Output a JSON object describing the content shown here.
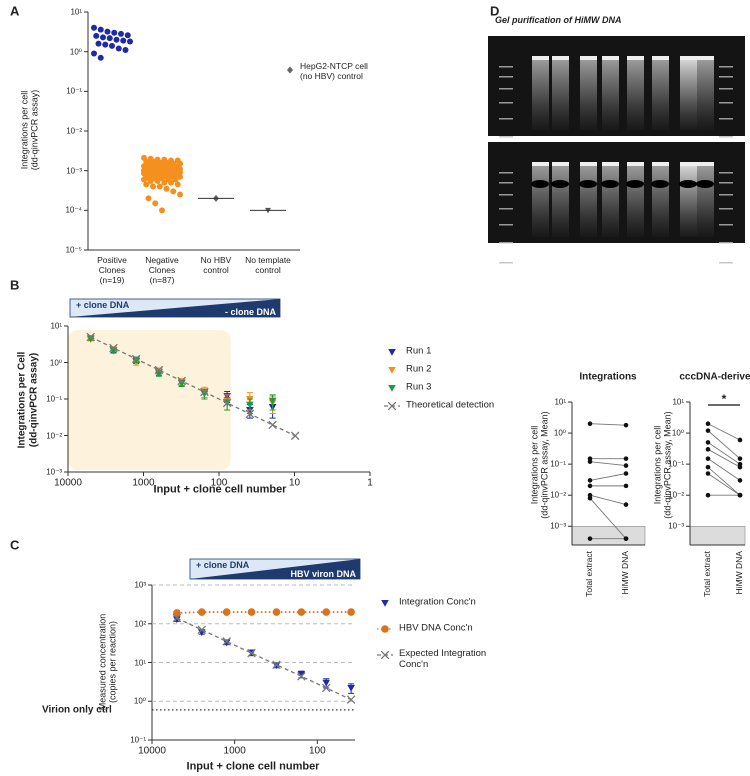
{
  "panel_labels": [
    "A",
    "B",
    "C",
    "D"
  ],
  "image": {
    "title": "Gel purification of HiMW DNA"
  },
  "chart_data": [
    {
      "type": "scatter",
      "y_label": "Integrations per cell\n(dd-qinvPCR assay)",
      "log_y": true,
      "ylim": [
        1e-05,
        10
      ],
      "yticks": [
        {
          "value": 10,
          "label": "10¹"
        },
        {
          "value": 1,
          "label": "10⁰"
        },
        {
          "value": 0.1,
          "label": "10⁻¹"
        },
        {
          "value": 0.01,
          "label": "10⁻²"
        },
        {
          "value": 0.001,
          "label": "10⁻³"
        },
        {
          "value": 0.0001,
          "label": "10⁻⁴"
        },
        {
          "value": 1e-05,
          "label": "10⁻⁵"
        }
      ],
      "groups": [
        {
          "label": "Positive\nClones\n(n=19)",
          "color": "#1f2aa8",
          "marker": "circle",
          "median_line": false,
          "values": [
            4.0,
            3.6,
            3.2,
            3.0,
            2.8,
            2.6,
            2.5,
            2.3,
            2.2,
            2.0,
            1.9,
            1.8,
            1.6,
            1.5,
            1.4,
            1.2,
            1.1,
            0.9,
            0.7
          ]
        },
        {
          "label": "Negative\nClones\n(n=87)",
          "color": "#f5901e",
          "marker": "circle",
          "median_line": false,
          "values": [
            0.0021,
            0.002,
            0.0019,
            0.0019,
            0.0018,
            0.0018,
            0.0017,
            0.0017,
            0.0016,
            0.0016,
            0.0015,
            0.0015,
            0.0015,
            0.0014,
            0.0014,
            0.0014,
            0.0013,
            0.0013,
            0.0013,
            0.0013,
            0.0012,
            0.0012,
            0.0012,
            0.0012,
            0.0012,
            0.0011,
            0.0011,
            0.0011,
            0.0011,
            0.0011,
            0.0011,
            0.001,
            0.001,
            0.001,
            0.001,
            0.001,
            0.001,
            0.001,
            0.001,
            0.001,
            0.00095,
            0.00095,
            0.00095,
            0.00095,
            0.0009,
            0.0009,
            0.0009,
            0.0009,
            0.0009,
            0.00085,
            0.00085,
            0.00085,
            0.00085,
            0.0008,
            0.0008,
            0.0008,
            0.0008,
            0.00075,
            0.00075,
            0.00075,
            0.0007,
            0.0007,
            0.0007,
            0.00065,
            0.00065,
            0.00065,
            0.0006,
            0.0006,
            0.0006,
            0.00055,
            0.00055,
            0.0005,
            0.0005,
            0.00045,
            0.00045,
            0.0004,
            0.0004,
            0.00035,
            0.0003,
            0.00025,
            0.0002,
            0.00015,
            0.0001,
            0.0012,
            0.0011,
            0.001,
            0.0009
          ]
        },
        {
          "label": "No HBV\ncontrol",
          "color": "#666666",
          "marker": "diamond",
          "median_line": true,
          "values": [
            0.0002
          ]
        },
        {
          "label": "No template\ncontrol",
          "color": "#555555",
          "marker": "triangle-down",
          "median_line": true,
          "values": [
            0.0001
          ]
        }
      ],
      "annotation": {
        "text": "HepG2-NTCP cell\n(no HBV) control",
        "marker": "diamond",
        "color": "#666666"
      }
    },
    {
      "type": "line",
      "y_label": "Integrations per Cell\n(dd-qinvPCR assay)",
      "x_label": "Input + clone cell number",
      "log_x": true,
      "log_y": true,
      "xlim": [
        10000,
        1
      ],
      "ylim": [
        0.001,
        10
      ],
      "xticks": [
        10000,
        1000,
        100,
        10,
        1
      ],
      "yticks": [
        {
          "value": 10,
          "label": "10¹"
        },
        {
          "value": 1,
          "label": "10⁰"
        },
        {
          "value": 0.1,
          "label": "10⁻¹"
        },
        {
          "value": 0.01,
          "label": "10⁻²"
        },
        {
          "value": 0.001,
          "label": "10⁻³"
        }
      ],
      "banner": [
        "+ clone DNA",
        "- clone DNA"
      ],
      "highlight_xlim": [
        10000,
        70
      ],
      "x": [
        5000,
        2500,
        1250,
        625,
        312,
        156,
        78,
        39,
        19.5
      ],
      "series": [
        {
          "name": "Run 1",
          "color": "#1f2aa8",
          "marker": "triangle-down",
          "line": "none",
          "values": [
            4.5,
            2.2,
            1.1,
            0.55,
            0.28,
            0.15,
            0.12,
            0.05,
            0.06
          ],
          "errors": [
            0.5,
            0.3,
            0.15,
            0.1,
            0.05,
            0.04,
            0.04,
            0.02,
            0.03
          ]
        },
        {
          "name": "Run 2",
          "color": "#f5901e",
          "marker": "triangle-down",
          "line": "none",
          "values": [
            4.3,
            2.3,
            1.0,
            0.6,
            0.3,
            0.16,
            0.09,
            0.1,
            0.08
          ],
          "errors": [
            0.4,
            0.3,
            0.15,
            0.1,
            0.06,
            0.05,
            0.04,
            0.05,
            0.04
          ]
        },
        {
          "name": "Run 3",
          "color": "#1e9b3a",
          "marker": "triangle-down",
          "line": "none",
          "values": [
            4.6,
            2.1,
            1.2,
            0.5,
            0.27,
            0.14,
            0.08,
            0.07,
            0.09
          ],
          "errors": [
            0.5,
            0.3,
            0.2,
            0.08,
            0.05,
            0.04,
            0.03,
            0.03,
            0.04
          ]
        },
        {
          "name": "Theoretical detection",
          "color": "#777777",
          "marker": "x",
          "line": "dashed",
          "x": [
            5000,
            2500,
            1250,
            625,
            312,
            156,
            78,
            39,
            19.5,
            9.8
          ],
          "values": [
            5,
            2.5,
            1.25,
            0.625,
            0.312,
            0.156,
            0.078,
            0.039,
            0.0195,
            0.0098
          ]
        }
      ]
    },
    {
      "type": "line",
      "y_label": "Measured concentration\n(copies per reaction)",
      "x_label": "Input + clone cell number",
      "log_x": true,
      "log_y": true,
      "xlim": [
        10000,
        35
      ],
      "ylim": [
        0.1,
        1000
      ],
      "grid": true,
      "xticks": [
        10000,
        1000,
        100
      ],
      "yticks": [
        {
          "value": 1000,
          "label": "10³"
        },
        {
          "value": 100,
          "label": "10²"
        },
        {
          "value": 10,
          "label": "10¹"
        },
        {
          "value": 1,
          "label": "10⁰"
        },
        {
          "value": 0.1,
          "label": "10⁻¹"
        }
      ],
      "banner": [
        "+ clone DNA",
        "HBV viron DNA"
      ],
      "reference": {
        "value": 0.6,
        "label": "Virion only ctrl"
      },
      "x": [
        5000,
        2500,
        1250,
        625,
        312,
        156,
        78,
        39
      ],
      "series": [
        {
          "name": "Integration Conc'n",
          "color": "#1f2aa8",
          "marker": "triangle-down",
          "line": "none",
          "values": [
            130,
            60,
            33,
            18,
            8.5,
            5,
            3,
            2.2
          ],
          "errors": [
            15,
            6,
            4,
            3,
            1.2,
            1,
            0.8,
            0.6
          ]
        },
        {
          "name": "HBV DNA Conc'n",
          "color": "#d9731c",
          "marker": "circle",
          "line": "dotted",
          "values": [
            190,
            200,
            200,
            200,
            200,
            200,
            200,
            200
          ]
        },
        {
          "name": "Expected Integration\nConc'n",
          "color": "#777777",
          "marker": "x",
          "line": "dashed",
          "values": [
            140,
            70,
            35,
            17.5,
            8.75,
            4.4,
            2.2,
            1.1
          ]
        }
      ]
    },
    {
      "type": "line",
      "title": "Integrations",
      "y_label": "Integrations per cell\n(dd-qinvPCR assay, Mean)",
      "log_y": true,
      "ylim": [
        0.00025,
        10
      ],
      "lod": 0.001,
      "yticks": [
        {
          "value": 10,
          "label": "10¹"
        },
        {
          "value": 1,
          "label": "10⁰"
        },
        {
          "value": 0.1,
          "label": "10⁻¹"
        },
        {
          "value": 0.01,
          "label": "10⁻²"
        },
        {
          "value": 0.001,
          "label": "10⁻³"
        }
      ],
      "categories": [
        "Total extract",
        "HiMW DNA"
      ],
      "pairs": [
        [
          2.0,
          1.8
        ],
        [
          0.15,
          0.15
        ],
        [
          0.12,
          0.09
        ],
        [
          0.03,
          0.05
        ],
        [
          0.02,
          0.02
        ],
        [
          0.01,
          0.005
        ],
        [
          0.008,
          0.0004
        ],
        [
          0.0004,
          0.0004
        ]
      ]
    },
    {
      "type": "line",
      "title": "cccDNA-derived",
      "y_label": "Integrations per cell\n(dd-qinvPCR assay, Mean)",
      "log_y": true,
      "ylim": [
        0.00025,
        10
      ],
      "lod": 0.001,
      "annotation": "*",
      "yticks": [
        {
          "value": 10,
          "label": "10¹"
        },
        {
          "value": 1,
          "label": "10⁰"
        },
        {
          "value": 0.1,
          "label": "10⁻¹"
        },
        {
          "value": 0.01,
          "label": "10⁻²"
        },
        {
          "value": 0.001,
          "label": "10⁻³"
        }
      ],
      "categories": [
        "Total extract",
        "HiMW DNA"
      ],
      "pairs": [
        [
          2.0,
          0.6
        ],
        [
          1.2,
          0.15
        ],
        [
          0.5,
          0.1
        ],
        [
          0.3,
          0.08
        ],
        [
          0.15,
          0.03
        ],
        [
          0.08,
          0.01
        ],
        [
          0.05,
          0.01
        ],
        [
          0.01,
          0.01
        ]
      ]
    }
  ]
}
